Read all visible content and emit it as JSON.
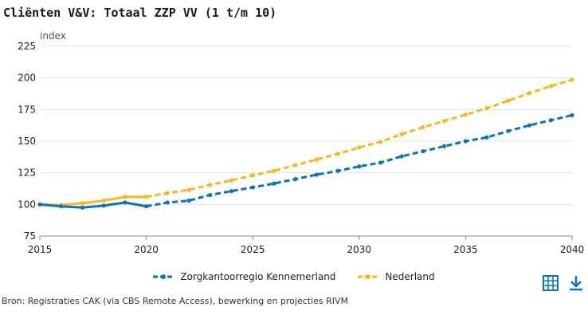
{
  "title": "Cliënten V&V: Totaal ZZP VV (1 t/m 10)",
  "source": "Bron: Registraties CAK (via CBS Remote Access), bewerking en projecties RIVM",
  "icons": {
    "table": "table-icon",
    "download": "download-icon"
  },
  "chart_data": {
    "type": "line",
    "title": "Cliënten V&V: Totaal ZZP VV (1 t/m 10)",
    "ylabel": "index",
    "xlabel": "",
    "xlim": [
      2015,
      2040
    ],
    "ylim": [
      75,
      225
    ],
    "xticks": [
      2015,
      2020,
      2025,
      2030,
      2035,
      2040
    ],
    "yticks": [
      75,
      100,
      125,
      150,
      175,
      200,
      225
    ],
    "grid": "horizontal",
    "legend": "bottom-center",
    "x": [
      2015,
      2016,
      2017,
      2018,
      2019,
      2020,
      2021,
      2022,
      2023,
      2024,
      2025,
      2026,
      2027,
      2028,
      2029,
      2030,
      2031,
      2032,
      2033,
      2034,
      2035,
      2036,
      2037,
      2038,
      2039,
      2040
    ],
    "series": [
      {
        "name": "Zorgkantoorregio Kennemerland",
        "color": "#0a73c1",
        "values": [
          100,
          98.5,
          97.5,
          99,
          101.5,
          98.5,
          101.5,
          103,
          107.5,
          110.5,
          113.5,
          116.5,
          120,
          123.5,
          126.5,
          130,
          133,
          138,
          142,
          146,
          150,
          153,
          158,
          162.5,
          166.5,
          170.5
        ]
      },
      {
        "name": "Nederland",
        "color": "#f6b81a",
        "values": [
          100,
          99.5,
          101,
          103,
          106,
          106,
          109,
          111.5,
          115.5,
          119,
          123,
          126.5,
          131,
          135.5,
          140,
          145,
          149.5,
          155.5,
          161,
          166,
          171,
          176,
          182,
          188,
          193.5,
          198.5
        ]
      }
    ],
    "projection_start": 2020
  }
}
